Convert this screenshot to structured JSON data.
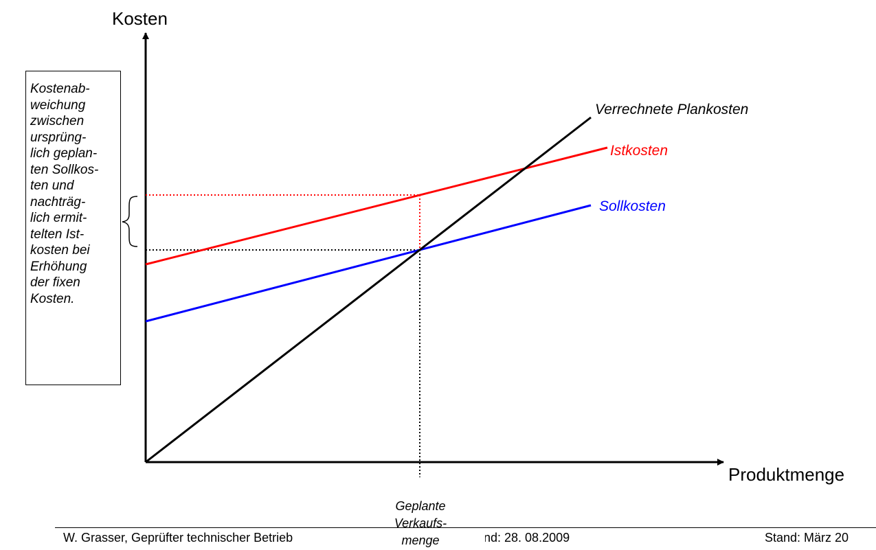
{
  "axes": {
    "y_title": "Kosten",
    "x_title": "Produktmenge",
    "x_marker_label": [
      "Geplante",
      "Verkaufs-",
      "menge"
    ]
  },
  "lines": [
    {
      "id": "verrechnete-plankosten",
      "label": "Verrechnete Plankosten",
      "color": "#000000"
    },
    {
      "id": "istkosten",
      "label": "Istkosten",
      "color": "#ff0000"
    },
    {
      "id": "sollkosten",
      "label": "Sollkosten",
      "color": "#0000ff"
    }
  ],
  "annotation": {
    "lines": [
      "Kostenab-",
      "weichung",
      "zwischen",
      "ursprüng-",
      "lich geplan-",
      "ten Sollkos-",
      "ten und",
      "nachträg-",
      "lich ermit-",
      "telten Ist-",
      "kosten bei",
      "Erhöhung",
      "der fixen",
      "Kosten."
    ]
  },
  "footer": {
    "left": "W. Grasser, Geprüfter technischer Betrieb",
    "middle": "nd: 28. 08.2009",
    "right": "Stand: März 20"
  },
  "colors": {
    "axis": "#000000",
    "istkosten": "#ff0000",
    "sollkosten": "#0000ff",
    "plankosten": "#000000"
  }
}
